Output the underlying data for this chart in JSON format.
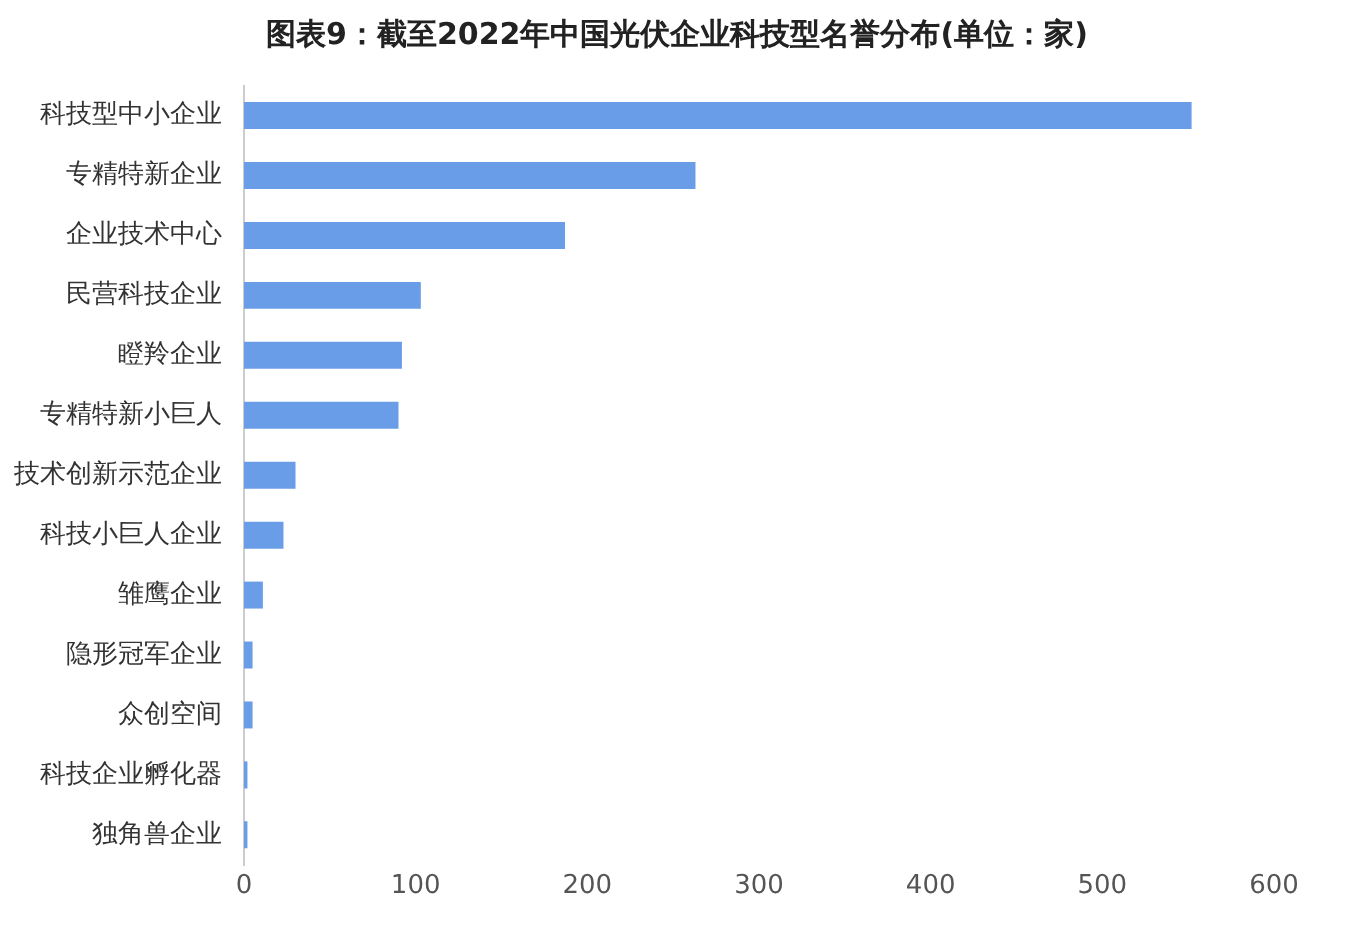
{
  "chart_data": {
    "type": "bar",
    "orientation": "horizontal",
    "title": "图表9：截至2022年中国光伏企业科技型名誉分布(单位：家)",
    "categories": [
      "科技型中小企业",
      "专精特新企业",
      "企业技术中心",
      "民营科技企业",
      "瞪羚企业",
      "专精特新小巨人",
      "技术创新示范企业",
      "科技小巨人企业",
      "雏鹰企业",
      "隐形冠军企业",
      "众创空间",
      "科技企业孵化器",
      "独角兽企业"
    ],
    "values": [
      552,
      263,
      187,
      103,
      92,
      90,
      30,
      23,
      11,
      5,
      5,
      2,
      2
    ],
    "color": "#6a9de8",
    "xlim": [
      0,
      600
    ],
    "xticks": [
      0,
      100,
      200,
      300,
      400,
      500,
      600
    ],
    "grid": false,
    "legend": false
  }
}
